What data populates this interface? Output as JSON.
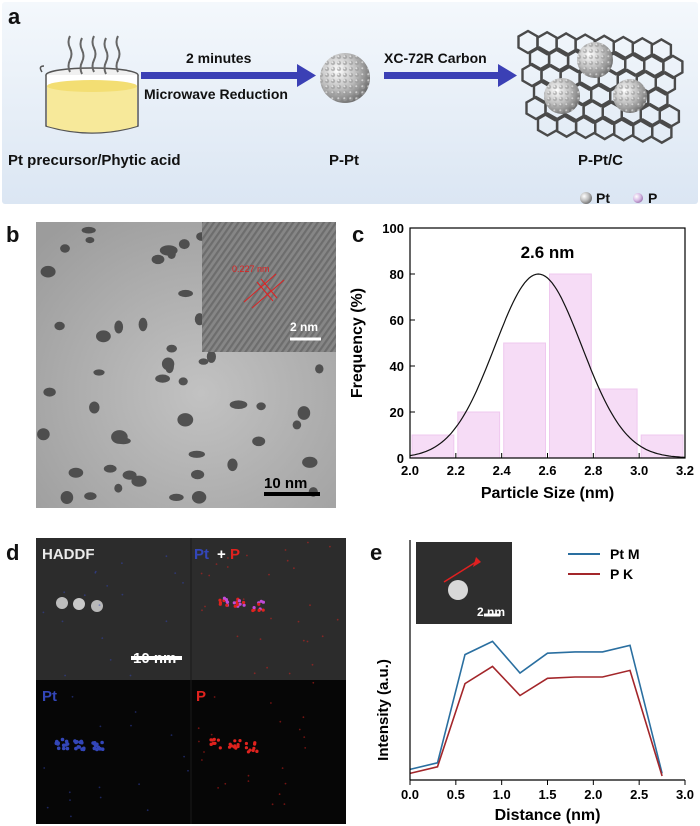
{
  "panel_a": {
    "label": "a",
    "step1_top": "2 minutes",
    "step1_bottom": "Microwave Reduction",
    "step2_top": "XC-72R Carbon",
    "precursor_label": "Pt precursor/Phytic acid",
    "ppt_label": "P-Pt",
    "pptc_label": "P-Pt/C",
    "legend": [
      {
        "label": "Pt",
        "color": "#b5b5b5"
      },
      {
        "label": "P",
        "color": "#c9a8d9"
      }
    ],
    "arrow_color": "#3b40b5"
  },
  "panel_b": {
    "label": "b",
    "scale_main": "10 nm",
    "scale_inset": "2 nm",
    "lattice_label": "0.227 nm"
  },
  "panel_c": {
    "label": "c",
    "annotation": "2.6 nm",
    "bar_color": "#f6dcf6"
  },
  "panel_d": {
    "label": "d",
    "haddf": "HADDF",
    "pt": "Pt",
    "plus": "+",
    "p": "P",
    "scale": "10 nm",
    "pt_color": "#3346b8",
    "p_color": "#e0221e"
  },
  "panel_e": {
    "label": "e",
    "inset_scale": "2 nm"
  },
  "chart_data": [
    {
      "type": "bar",
      "panel": "c",
      "xlabel": "Particle Size (nm)",
      "ylabel": "Frequency (%)",
      "xlim": [
        2.0,
        3.2
      ],
      "ylim": [
        0,
        100
      ],
      "xticks": [
        "2.0",
        "2.2",
        "2.4",
        "2.6",
        "2.8",
        "3.0",
        "3.2"
      ],
      "yticks": [
        "0",
        "20",
        "40",
        "60",
        "80",
        "100"
      ],
      "bins": [
        [
          2.0,
          2.2
        ],
        [
          2.2,
          2.4
        ],
        [
          2.4,
          2.6
        ],
        [
          2.6,
          2.8
        ],
        [
          2.8,
          3.0
        ],
        [
          3.0,
          3.2
        ]
      ],
      "values": [
        10,
        20,
        50,
        80,
        30,
        10
      ],
      "fit": {
        "type": "gaussian",
        "center": 2.56,
        "peak": 80,
        "sigma": 0.19
      }
    },
    {
      "type": "line",
      "panel": "e",
      "xlabel": "Distance  (nm)",
      "ylabel": "Intensity (a.u.)",
      "xlim": [
        0.0,
        3.0
      ],
      "xticks": [
        "0.0",
        "0.5",
        "1.0",
        "1.5",
        "2.0",
        "2.5",
        "3.0"
      ],
      "legend_position": "top-right",
      "series": [
        {
          "name": "Pt M",
          "color": "#2a6fa0",
          "x": [
            0.0,
            0.3,
            0.6,
            0.9,
            1.2,
            1.5,
            1.8,
            2.1,
            2.4,
            2.75
          ],
          "y": [
            0.05,
            0.1,
            0.92,
            1.02,
            0.78,
            0.93,
            0.94,
            0.94,
            0.99,
            0.02
          ]
        },
        {
          "name": "P K",
          "color": "#a3262a",
          "x": [
            0.0,
            0.3,
            0.6,
            0.9,
            1.2,
            1.5,
            1.8,
            2.1,
            2.4,
            2.75
          ],
          "y": [
            0.02,
            0.07,
            0.7,
            0.83,
            0.61,
            0.74,
            0.75,
            0.75,
            0.8,
            0.0
          ]
        }
      ]
    }
  ]
}
